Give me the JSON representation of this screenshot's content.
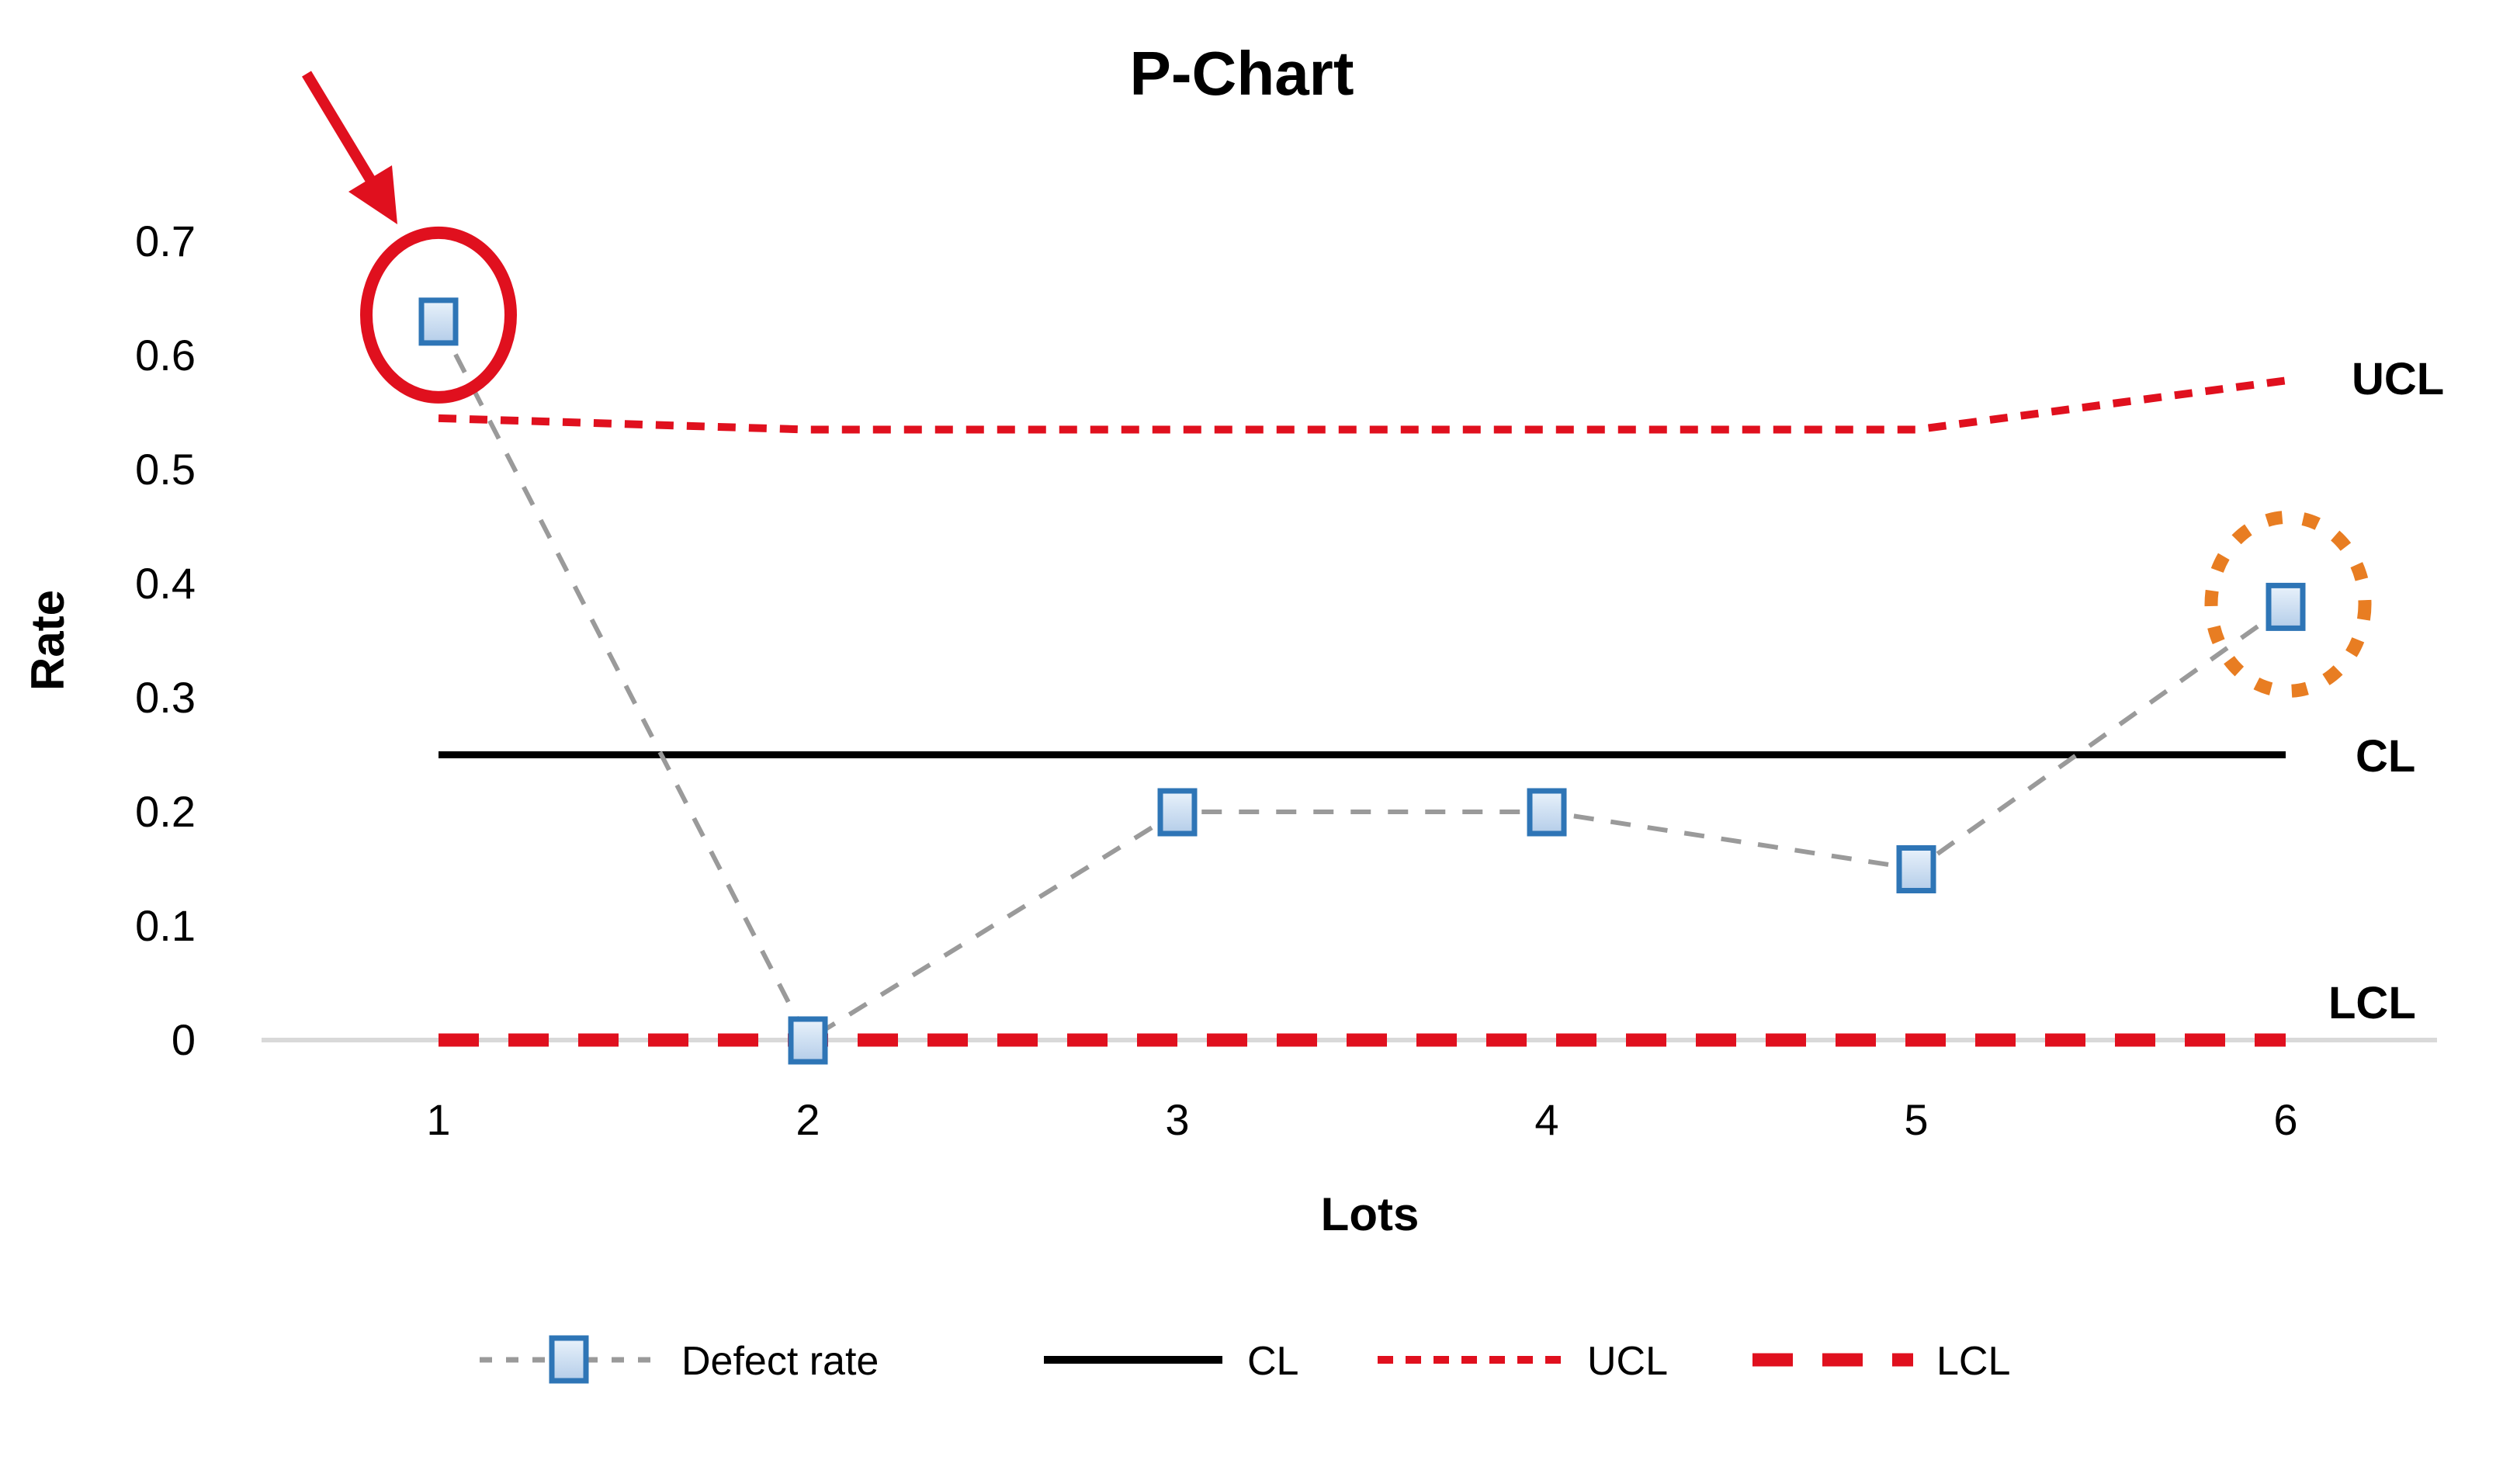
{
  "title": "P-Chart",
  "y_axis": {
    "label": "Rate",
    "ticks": [
      "0.7",
      "0.6",
      "0.5",
      "0.4",
      "0.3",
      "0.2",
      "0.1",
      "0"
    ]
  },
  "x_axis": {
    "label": "Lots",
    "ticks": [
      "1",
      "2",
      "3",
      "4",
      "5",
      "6"
    ]
  },
  "line_labels": {
    "ucl": "UCL",
    "cl": "CL",
    "lcl": "LCL"
  },
  "legend": {
    "items": [
      {
        "label": "Defect rate"
      },
      {
        "label": "CL"
      },
      {
        "label": "UCL"
      },
      {
        "label": "LCL"
      }
    ]
  },
  "colors": {
    "red": "#E0101E",
    "orange": "#E87D22",
    "marker_border": "#2E75B6",
    "marker_fill_light": "#E9F2FB",
    "marker_fill_dark": "#B4CDE9",
    "connector_gray": "#9A9A9A",
    "axis_gray": "#D9D9D9",
    "black": "#000000"
  },
  "chart_data": {
    "type": "line",
    "title": "P-Chart",
    "xlabel": "Lots",
    "ylabel": "Rate",
    "categories": [
      1,
      2,
      3,
      4,
      5,
      6
    ],
    "series": [
      {
        "name": "Defect rate",
        "style": "gray-dashed-with-blue-square-markers",
        "values": [
          0.63,
          0,
          0.2,
          0.2,
          0.15,
          0.38
        ]
      },
      {
        "name": "CL",
        "style": "black-solid",
        "values": [
          0.25,
          0.25,
          0.25,
          0.25,
          0.25,
          0.25
        ]
      },
      {
        "name": "UCL",
        "style": "red-fine-dashed",
        "values": [
          0.545,
          0.535,
          0.535,
          0.535,
          0.535,
          0.578
        ]
      },
      {
        "name": "LCL",
        "style": "red-thick-dashed",
        "values": [
          0,
          0,
          0,
          0,
          0,
          0
        ]
      }
    ],
    "ylim": [
      0,
      0.75
    ],
    "y_ticks": [
      0,
      0.1,
      0.2,
      0.3,
      0.4,
      0.5,
      0.6,
      0.7
    ],
    "grid": false,
    "legend_position": "bottom",
    "annotations": [
      {
        "type": "red-circle-with-arrow",
        "target_lot": 1,
        "meaning": "point above UCL"
      },
      {
        "type": "orange-dotted-circle",
        "target_lot": 6,
        "meaning": "highlighted point"
      }
    ]
  }
}
